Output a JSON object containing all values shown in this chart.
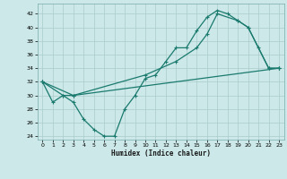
{
  "xlabel": "Humidex (Indice chaleur)",
  "bg_color": "#cce8e8",
  "grid_color": "#aacccc",
  "line_color": "#1a7a6e",
  "xlim": [
    -0.5,
    23.5
  ],
  "ylim": [
    23.5,
    43.5
  ],
  "xticks": [
    0,
    1,
    2,
    3,
    4,
    5,
    6,
    7,
    8,
    9,
    10,
    11,
    12,
    13,
    14,
    15,
    16,
    17,
    18,
    19,
    20,
    21,
    22,
    23
  ],
  "yticks": [
    24,
    26,
    28,
    30,
    32,
    34,
    36,
    38,
    40,
    42
  ],
  "line1_x": [
    0,
    1,
    2,
    3,
    4,
    5,
    6,
    7,
    8,
    9,
    10,
    11,
    12,
    13,
    14,
    15,
    16,
    17,
    18,
    19,
    20,
    21,
    22,
    23
  ],
  "line1_y": [
    32,
    29,
    30,
    29,
    26.5,
    25,
    24,
    24,
    28,
    30,
    32.5,
    33,
    35,
    37,
    37,
    39.5,
    41.5,
    42.5,
    42,
    41,
    40,
    37,
    34,
    34
  ],
  "line2_x": [
    0,
    2,
    3,
    10,
    13,
    15,
    16,
    17,
    19,
    20,
    22,
    23
  ],
  "line2_y": [
    32,
    30,
    30,
    33,
    35,
    37,
    39,
    42,
    41,
    40,
    34,
    34
  ],
  "line3_x": [
    0,
    3,
    23
  ],
  "line3_y": [
    32,
    30,
    34
  ]
}
